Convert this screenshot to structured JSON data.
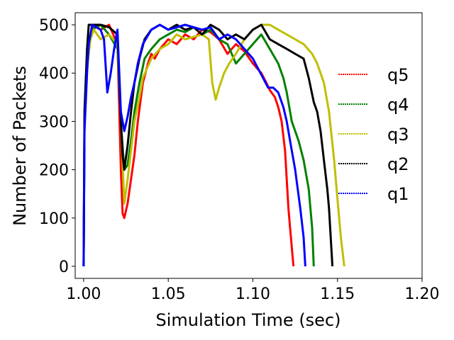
{
  "chart_data": {
    "type": "line",
    "xlabel": "Simulation Time (sec)",
    "ylabel": "Number of Packets",
    "xlim": [
      0.995,
      1.2
    ],
    "ylim": [
      -25,
      525
    ],
    "x_ticks": [
      {
        "value": 1.0,
        "label": "1.00"
      },
      {
        "value": 1.05,
        "label": "1.05"
      },
      {
        "value": 1.1,
        "label": "1.10"
      },
      {
        "value": 1.15,
        "label": "1.15"
      },
      {
        "value": 1.2,
        "label": "1.20"
      }
    ],
    "y_ticks": [
      {
        "value": 0,
        "label": "0"
      },
      {
        "value": 100,
        "label": "100"
      },
      {
        "value": 200,
        "label": "200"
      },
      {
        "value": 300,
        "label": "300"
      },
      {
        "value": 400,
        "label": "400"
      },
      {
        "value": 500,
        "label": "500"
      }
    ],
    "grid": false,
    "legend_position": "right",
    "series": [
      {
        "name": "q5",
        "color": "#ff0000",
        "points": [
          [
            1.0,
            0
          ],
          [
            1.0005,
            300
          ],
          [
            1.002,
            420
          ],
          [
            1.003,
            460
          ],
          [
            1.004,
            480
          ],
          [
            1.006,
            500
          ],
          [
            1.01,
            490
          ],
          [
            1.015,
            500
          ],
          [
            1.02,
            460
          ],
          [
            1.022,
            200
          ],
          [
            1.023,
            110
          ],
          [
            1.024,
            100
          ],
          [
            1.026,
            130
          ],
          [
            1.028,
            180
          ],
          [
            1.03,
            230
          ],
          [
            1.032,
            300
          ],
          [
            1.035,
            380
          ],
          [
            1.038,
            420
          ],
          [
            1.04,
            440
          ],
          [
            1.042,
            430
          ],
          [
            1.045,
            450
          ],
          [
            1.05,
            470
          ],
          [
            1.055,
            460
          ],
          [
            1.06,
            480
          ],
          [
            1.065,
            470
          ],
          [
            1.07,
            490
          ],
          [
            1.075,
            485
          ],
          [
            1.08,
            470
          ],
          [
            1.085,
            440
          ],
          [
            1.09,
            460
          ],
          [
            1.095,
            445
          ],
          [
            1.1,
            420
          ],
          [
            1.105,
            400
          ],
          [
            1.108,
            380
          ],
          [
            1.11,
            365
          ],
          [
            1.113,
            350
          ],
          [
            1.115,
            330
          ],
          [
            1.117,
            300
          ],
          [
            1.119,
            240
          ],
          [
            1.12,
            180
          ],
          [
            1.121,
            120
          ],
          [
            1.122,
            80
          ],
          [
            1.123,
            40
          ],
          [
            1.124,
            0
          ]
        ]
      },
      {
        "name": "q4",
        "color": "#008000",
        "points": [
          [
            1.0,
            0
          ],
          [
            1.0005,
            300
          ],
          [
            1.002,
            430
          ],
          [
            1.003,
            460
          ],
          [
            1.005,
            490
          ],
          [
            1.01,
            500
          ],
          [
            1.015,
            480
          ],
          [
            1.02,
            450
          ],
          [
            1.022,
            300
          ],
          [
            1.024,
            200
          ],
          [
            1.026,
            210
          ],
          [
            1.028,
            260
          ],
          [
            1.03,
            320
          ],
          [
            1.033,
            380
          ],
          [
            1.036,
            430
          ],
          [
            1.04,
            450
          ],
          [
            1.045,
            470
          ],
          [
            1.05,
            480
          ],
          [
            1.055,
            490
          ],
          [
            1.06,
            485
          ],
          [
            1.065,
            495
          ],
          [
            1.07,
            480
          ],
          [
            1.075,
            490
          ],
          [
            1.08,
            470
          ],
          [
            1.085,
            460
          ],
          [
            1.09,
            420
          ],
          [
            1.095,
            440
          ],
          [
            1.1,
            460
          ],
          [
            1.105,
            480
          ],
          [
            1.11,
            450
          ],
          [
            1.115,
            420
          ],
          [
            1.118,
            390
          ],
          [
            1.12,
            360
          ],
          [
            1.123,
            300
          ],
          [
            1.125,
            280
          ],
          [
            1.127,
            260
          ],
          [
            1.13,
            220
          ],
          [
            1.133,
            160
          ],
          [
            1.135,
            80
          ],
          [
            1.136,
            0
          ]
        ]
      },
      {
        "name": "q3",
        "color": "#bfbf00",
        "points": [
          [
            1.0,
            0
          ],
          [
            1.0005,
            290
          ],
          [
            1.002,
            410
          ],
          [
            1.004,
            470
          ],
          [
            1.006,
            490
          ],
          [
            1.01,
            470
          ],
          [
            1.015,
            480
          ],
          [
            1.02,
            460
          ],
          [
            1.022,
            300
          ],
          [
            1.024,
            130
          ],
          [
            1.026,
            180
          ],
          [
            1.028,
            240
          ],
          [
            1.03,
            300
          ],
          [
            1.033,
            350
          ],
          [
            1.035,
            390
          ],
          [
            1.04,
            430
          ],
          [
            1.045,
            450
          ],
          [
            1.05,
            460
          ],
          [
            1.055,
            480
          ],
          [
            1.06,
            470
          ],
          [
            1.065,
            475
          ],
          [
            1.07,
            480
          ],
          [
            1.074,
            470
          ],
          [
            1.076,
            380
          ],
          [
            1.078,
            345
          ],
          [
            1.08,
            370
          ],
          [
            1.083,
            400
          ],
          [
            1.086,
            420
          ],
          [
            1.09,
            440
          ],
          [
            1.095,
            470
          ],
          [
            1.1,
            490
          ],
          [
            1.105,
            500
          ],
          [
            1.11,
            500
          ],
          [
            1.115,
            490
          ],
          [
            1.12,
            480
          ],
          [
            1.125,
            470
          ],
          [
            1.13,
            460
          ],
          [
            1.135,
            440
          ],
          [
            1.138,
            420
          ],
          [
            1.14,
            400
          ],
          [
            1.142,
            380
          ],
          [
            1.145,
            320
          ],
          [
            1.148,
            220
          ],
          [
            1.15,
            140
          ],
          [
            1.152,
            60
          ],
          [
            1.154,
            0
          ]
        ]
      },
      {
        "name": "q2",
        "color": "#000000",
        "points": [
          [
            1.0,
            0
          ],
          [
            1.0005,
            320
          ],
          [
            1.002,
            450
          ],
          [
            1.003,
            500
          ],
          [
            1.01,
            500
          ],
          [
            1.015,
            495
          ],
          [
            1.02,
            480
          ],
          [
            1.022,
            300
          ],
          [
            1.023,
            230
          ],
          [
            1.024,
            200
          ],
          [
            1.026,
            250
          ],
          [
            1.028,
            320
          ],
          [
            1.03,
            380
          ],
          [
            1.033,
            430
          ],
          [
            1.036,
            470
          ],
          [
            1.04,
            490
          ],
          [
            1.045,
            500
          ],
          [
            1.05,
            490
          ],
          [
            1.055,
            500
          ],
          [
            1.06,
            490
          ],
          [
            1.065,
            495
          ],
          [
            1.07,
            480
          ],
          [
            1.075,
            500
          ],
          [
            1.08,
            490
          ],
          [
            1.085,
            470
          ],
          [
            1.09,
            480
          ],
          [
            1.095,
            470
          ],
          [
            1.1,
            490
          ],
          [
            1.105,
            500
          ],
          [
            1.11,
            470
          ],
          [
            1.115,
            460
          ],
          [
            1.12,
            450
          ],
          [
            1.125,
            440
          ],
          [
            1.13,
            430
          ],
          [
            1.133,
            390
          ],
          [
            1.136,
            340
          ],
          [
            1.138,
            320
          ],
          [
            1.14,
            280
          ],
          [
            1.142,
            220
          ],
          [
            1.144,
            160
          ],
          [
            1.145,
            120
          ],
          [
            1.146,
            60
          ],
          [
            1.147,
            0
          ]
        ]
      },
      {
        "name": "q1",
        "color": "#0000ff",
        "points": [
          [
            1.0,
            0
          ],
          [
            1.0005,
            280
          ],
          [
            1.002,
            400
          ],
          [
            1.003,
            460
          ],
          [
            1.005,
            500
          ],
          [
            1.01,
            490
          ],
          [
            1.012,
            470
          ],
          [
            1.014,
            360
          ],
          [
            1.016,
            400
          ],
          [
            1.018,
            450
          ],
          [
            1.02,
            490
          ],
          [
            1.022,
            320
          ],
          [
            1.024,
            280
          ],
          [
            1.026,
            310
          ],
          [
            1.028,
            350
          ],
          [
            1.03,
            380
          ],
          [
            1.032,
            420
          ],
          [
            1.035,
            460
          ],
          [
            1.04,
            490
          ],
          [
            1.045,
            500
          ],
          [
            1.05,
            490
          ],
          [
            1.055,
            495
          ],
          [
            1.06,
            500
          ],
          [
            1.065,
            495
          ],
          [
            1.07,
            490
          ],
          [
            1.075,
            495
          ],
          [
            1.08,
            470
          ],
          [
            1.085,
            480
          ],
          [
            1.09,
            470
          ],
          [
            1.095,
            450
          ],
          [
            1.1,
            430
          ],
          [
            1.103,
            410
          ],
          [
            1.106,
            390
          ],
          [
            1.109,
            370
          ],
          [
            1.112,
            370
          ],
          [
            1.115,
            360
          ],
          [
            1.118,
            330
          ],
          [
            1.12,
            300
          ],
          [
            1.122,
            260
          ],
          [
            1.125,
            200
          ],
          [
            1.128,
            120
          ],
          [
            1.13,
            60
          ],
          [
            1.131,
            0
          ]
        ]
      }
    ]
  }
}
